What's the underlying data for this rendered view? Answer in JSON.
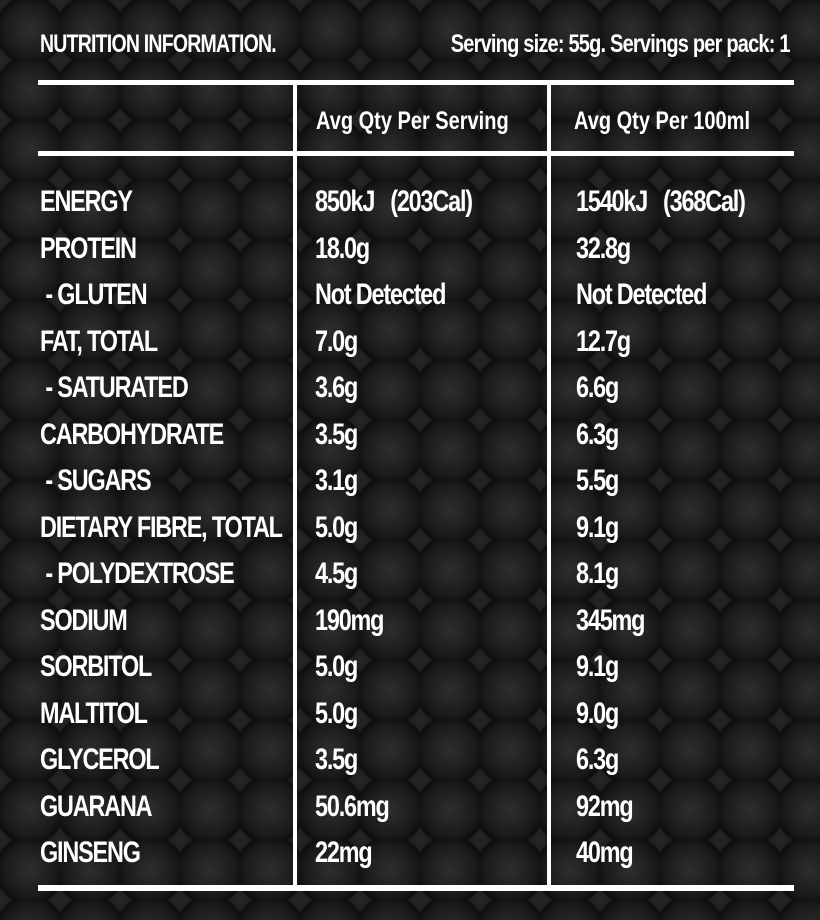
{
  "header": {
    "title": "NUTRITION INFORMATION.",
    "serving": "Serving size: 55g.  Servings per pack: 1"
  },
  "columns": {
    "per_serving": "Avg Qty Per Serving",
    "per_100": "Avg Qty Per 100ml"
  },
  "rows": [
    {
      "name": "ENERGY",
      "serving": "850kJ   (203Cal)",
      "per100": "1540kJ   (368Cal)"
    },
    {
      "name": "PROTEIN",
      "serving": "18.0g",
      "per100": "32.8g"
    },
    {
      "name": " - GLUTEN",
      "serving": "Not Detected",
      "per100": "Not Detected"
    },
    {
      "name": "FAT, TOTAL",
      "serving": "7.0g",
      "per100": "12.7g"
    },
    {
      "name": " - SATURATED",
      "serving": "3.6g",
      "per100": "6.6g"
    },
    {
      "name": "CARBOHYDRATE",
      "serving": "3.5g",
      "per100": "6.3g"
    },
    {
      "name": " - SUGARS",
      "serving": "3.1g",
      "per100": "5.5g"
    },
    {
      "name": "DIETARY FIBRE, TOTAL",
      "serving": "5.0g",
      "per100": "9.1g"
    },
    {
      "name": " - POLYDEXTROSE",
      "serving": "4.5g",
      "per100": "8.1g"
    },
    {
      "name": "SODIUM",
      "serving": "190mg",
      "per100": "345mg"
    },
    {
      "name": "SORBITOL",
      "serving": "5.0g",
      "per100": "9.1g"
    },
    {
      "name": "MALTITOL",
      "serving": "5.0g",
      "per100": "9.0g"
    },
    {
      "name": "GLYCEROL",
      "serving": "3.5g",
      "per100": "6.3g"
    },
    {
      "name": "GUARANA",
      "serving": "50.6mg",
      "per100": "92mg"
    },
    {
      "name": "GINSENG",
      "serving": "22mg",
      "per100": "40mg"
    }
  ]
}
